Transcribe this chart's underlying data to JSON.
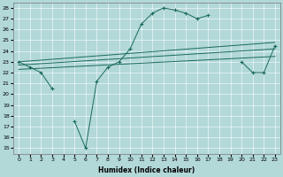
{
  "xlabel": "Humidex (Indice chaleur)",
  "xlim": [
    -0.5,
    23.5
  ],
  "ylim": [
    14.5,
    28.5
  ],
  "xticks": [
    0,
    1,
    2,
    3,
    4,
    5,
    6,
    7,
    8,
    9,
    10,
    11,
    12,
    13,
    14,
    15,
    16,
    17,
    18,
    19,
    20,
    21,
    22,
    23
  ],
  "yticks": [
    15,
    16,
    17,
    18,
    19,
    20,
    21,
    22,
    23,
    24,
    25,
    26,
    27,
    28
  ],
  "bg_color": "#b2d8d8",
  "line_color": "#1a6b5a",
  "series1_x": [
    0,
    1,
    2,
    3,
    4,
    5,
    6,
    7,
    8,
    9,
    10,
    11,
    12,
    13,
    14,
    15,
    16,
    17,
    18,
    19,
    20,
    21,
    22,
    23
  ],
  "series1_y": [
    23.0,
    22.5,
    22.0,
    20.5,
    null,
    17.5,
    15.0,
    21.2,
    22.5,
    23.0,
    24.2,
    26.5,
    27.5,
    28.0,
    27.8,
    27.5,
    27.0,
    27.3,
    null,
    null,
    23.0,
    22.0,
    22.0,
    24.5
  ],
  "line1_x": [
    0,
    23
  ],
  "line1_y": [
    23.0,
    24.8
  ],
  "line2_x": [
    0,
    23
  ],
  "line2_y": [
    22.7,
    24.2
  ],
  "line3_x": [
    0,
    23
  ],
  "line3_y": [
    22.3,
    23.5
  ]
}
